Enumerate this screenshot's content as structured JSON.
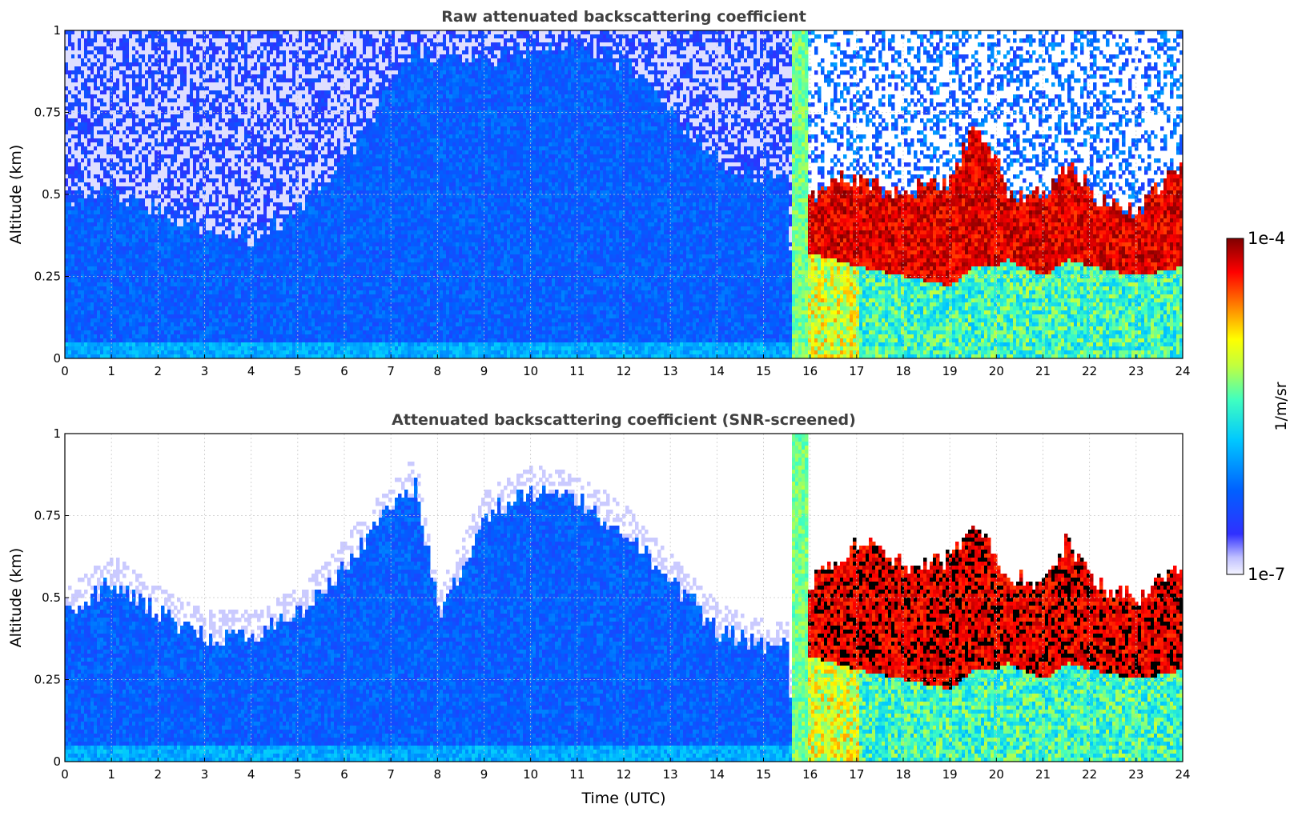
{
  "colors": {
    "title": "#404040",
    "grid": "#c8c8c8",
    "colormap": [
      "#f2f2ff",
      "#c8c8ff",
      "#0000ff",
      "#0080ff",
      "#00ffff",
      "#80ff80",
      "#ffff00",
      "#ff8000",
      "#ff0000",
      "#800000"
    ]
  },
  "chart_data": [
    {
      "type": "heatmap",
      "title": "Raw attenuated backscattering coefficient",
      "xlabel": "",
      "ylabel": "Altitude (km)",
      "xlim": [
        0,
        24
      ],
      "ylim": [
        0,
        1
      ],
      "x_ticks": [
        "0",
        "1",
        "2",
        "3",
        "4",
        "5",
        "6",
        "7",
        "8",
        "9",
        "10",
        "11",
        "12",
        "13",
        "14",
        "15",
        "16",
        "17",
        "18",
        "19",
        "20",
        "21",
        "22",
        "23",
        "24"
      ],
      "y_ticks": [
        "0",
        "0.25",
        "0.5",
        "0.75",
        "1"
      ],
      "grid": true,
      "profile": {
        "x_hours": [
          0,
          1,
          2,
          3,
          4,
          5,
          6,
          7,
          7.5,
          8,
          9,
          10,
          11,
          12,
          13,
          14,
          15,
          15.5,
          15.6,
          16,
          16.5,
          17,
          18,
          19,
          19.5,
          20,
          20.2,
          21,
          21.5,
          22,
          23,
          24
        ],
        "aerosol_top_km": [
          0.48,
          0.52,
          0.45,
          0.38,
          0.37,
          0.45,
          0.6,
          0.85,
          0.95,
          0.9,
          0.9,
          0.95,
          0.95,
          0.9,
          0.75,
          0.6,
          0.55,
          0.55,
          0.0,
          0.0,
          0.0,
          0.0,
          0.0,
          0.0,
          0.0,
          0.0,
          0.0,
          0.0,
          0.0,
          0.0,
          0.0,
          0.0
        ],
        "cloud_base_km": [
          null,
          null,
          null,
          null,
          null,
          null,
          null,
          null,
          null,
          null,
          null,
          null,
          null,
          null,
          null,
          null,
          null,
          null,
          0.32,
          0.32,
          0.3,
          0.28,
          0.25,
          0.22,
          0.28,
          0.28,
          0.3,
          0.25,
          0.3,
          0.28,
          0.25,
          0.28
        ],
        "cloud_top_km": [
          null,
          null,
          null,
          null,
          null,
          null,
          null,
          null,
          null,
          null,
          null,
          null,
          null,
          null,
          null,
          null,
          null,
          null,
          0.45,
          0.5,
          0.55,
          0.55,
          0.5,
          0.55,
          0.7,
          0.6,
          0.5,
          0.5,
          0.6,
          0.5,
          0.45,
          0.6
        ]
      }
    },
    {
      "type": "heatmap",
      "title": "Attenuated backscattering coefficient (SNR-screened)",
      "xlabel": "Time (UTC)",
      "ylabel": "Altitude (km)",
      "xlim": [
        0,
        24
      ],
      "ylim": [
        0,
        1
      ],
      "x_ticks": [
        "0",
        "1",
        "2",
        "3",
        "4",
        "5",
        "6",
        "7",
        "8",
        "9",
        "10",
        "11",
        "12",
        "13",
        "14",
        "15",
        "16",
        "17",
        "18",
        "19",
        "20",
        "21",
        "22",
        "23",
        "24"
      ],
      "y_ticks": [
        "0",
        "0.25",
        "0.5",
        "0.75",
        "1"
      ],
      "grid": true,
      "profile": {
        "x_hours": [
          0,
          1,
          2,
          3,
          4,
          5,
          6,
          7,
          7.5,
          8,
          9,
          10,
          11,
          12,
          13,
          14,
          15,
          15.5,
          15.6,
          16,
          16.5,
          17,
          18,
          19,
          19.5,
          20,
          20.2,
          21,
          21.5,
          22,
          23,
          24
        ],
        "aerosol_top_km": [
          0.45,
          0.55,
          0.45,
          0.38,
          0.38,
          0.45,
          0.6,
          0.78,
          0.85,
          0.45,
          0.75,
          0.82,
          0.8,
          0.7,
          0.55,
          0.4,
          0.35,
          0.35,
          0.0,
          0.0,
          0.0,
          0.0,
          0.0,
          0.0,
          0.0,
          0.0,
          0.0,
          0.0,
          0.0,
          0.0,
          0.0,
          0.0
        ],
        "cloud_base_km": [
          null,
          null,
          null,
          null,
          null,
          null,
          null,
          null,
          null,
          null,
          null,
          null,
          null,
          null,
          null,
          null,
          null,
          null,
          0.32,
          0.32,
          0.3,
          0.28,
          0.25,
          0.22,
          0.28,
          0.28,
          0.3,
          0.25,
          0.3,
          0.28,
          0.25,
          0.28
        ],
        "cloud_top_km": [
          null,
          null,
          null,
          null,
          null,
          null,
          null,
          null,
          null,
          null,
          null,
          null,
          null,
          null,
          null,
          null,
          null,
          null,
          0.45,
          0.55,
          0.6,
          0.68,
          0.6,
          0.62,
          0.72,
          0.62,
          0.55,
          0.55,
          0.68,
          0.55,
          0.5,
          0.6
        ]
      }
    }
  ],
  "colorbar": {
    "label": "1/m/sr",
    "max_label": "1e-4",
    "min_label": "1e-7",
    "scale": "log",
    "range": [
      1e-07,
      0.0001
    ]
  }
}
